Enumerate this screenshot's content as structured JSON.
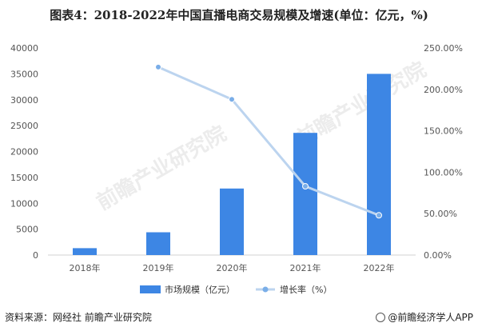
{
  "title": "图表4：2018-2022年中国直播电商交易规模及增速(单位：亿元，%)",
  "source": "资料来源：网经社 前瞻产业研究院",
  "brand": "@前瞻经济学人APP",
  "watermark": "前瞻产业研究院",
  "colors": {
    "bar": "#3d86e4",
    "line": "#bcd4ef",
    "marker": "#7aaee8",
    "axis": "#d0d0d0",
    "text": "#555555"
  },
  "chart_data": {
    "type": "bar",
    "categories": [
      "2018年",
      "2019年",
      "2020年",
      "2021年",
      "2022年"
    ],
    "series": [
      {
        "name": "市场规模（亿元）",
        "type": "bar",
        "axis": "left",
        "values": [
          1330,
          4400,
          12850,
          23600,
          35000
        ]
      },
      {
        "name": "增长率（%）",
        "type": "line",
        "axis": "right",
        "values": [
          null,
          227,
          188,
          83,
          48
        ]
      }
    ],
    "y_left": {
      "min": 0,
      "max": 40000,
      "ticks": [
        "0",
        "5000",
        "10000",
        "15000",
        "20000",
        "25000",
        "30000",
        "35000",
        "40000"
      ]
    },
    "y_right": {
      "min": 0,
      "max": 250,
      "ticks": [
        "0.00%",
        "50.00%",
        "100.00%",
        "150.00%",
        "200.00%",
        "250.00%"
      ]
    },
    "legend": {
      "position": "bottom",
      "entries": [
        "市场规模（亿元）",
        "增长率（%）"
      ]
    },
    "grid": false
  }
}
